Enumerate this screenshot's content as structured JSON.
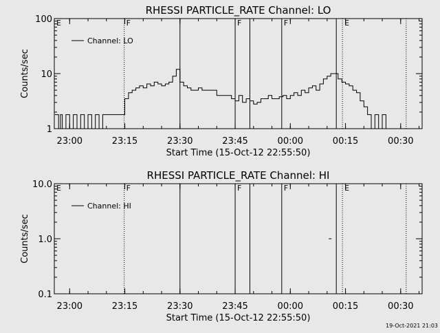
{
  "footer": {
    "timestamp": "19-Oct-2021 21:03"
  },
  "chart_data": [
    {
      "type": "line",
      "title": "RHESSI PARTICLE_RATE Channel: LO",
      "xlabel": "Start Time (15-Oct-12 22:55:50)",
      "ylabel": "Counts/sec",
      "yscale": "log",
      "ylim": [
        1,
        100
      ],
      "xlim": [
        "22:55:50",
        "00:35:50"
      ],
      "x_ticks": [
        "23:00",
        "23:15",
        "23:30",
        "23:45",
        "00:00",
        "00:15",
        "00:30"
      ],
      "y_ticks": [
        "1",
        "10",
        "100"
      ],
      "legend": {
        "position": "top-left",
        "entries": [
          "Channel: LO"
        ]
      },
      "annotations": [
        {
          "label": "E",
          "time": "22:55:50",
          "style": "none"
        },
        {
          "label": "F",
          "time": "23:14:50",
          "style": "dotted"
        },
        {
          "label": "",
          "time": "23:30:00",
          "style": "solid"
        },
        {
          "label": "F",
          "time": "23:45:00",
          "style": "solid"
        },
        {
          "label": "",
          "time": "23:49:00",
          "style": "solid"
        },
        {
          "label": "F",
          "time": "23:57:40",
          "style": "solid"
        },
        {
          "label": "",
          "time": "00:12:30",
          "style": "solid"
        },
        {
          "label": "E",
          "time": "00:14:10",
          "style": "dotted"
        },
        {
          "label": "",
          "time": "00:31:30",
          "style": "dotted"
        }
      ],
      "series": [
        {
          "name": "Channel: LO",
          "x": [
            "22:56:00",
            "22:57:00",
            "22:57:30",
            "22:58:00",
            "22:59:00",
            "23:00:00",
            "23:01:00",
            "23:02:00",
            "23:03:00",
            "23:04:00",
            "23:05:00",
            "23:06:00",
            "23:07:00",
            "23:08:00",
            "23:09:00",
            "23:10:00",
            "23:11:00",
            "23:12:00",
            "23:13:00",
            "23:14:00",
            "23:14:40",
            "23:15:00",
            "23:16:00",
            "23:17:00",
            "23:18:00",
            "23:19:00",
            "23:20:00",
            "23:21:00",
            "23:22:00",
            "23:23:00",
            "23:24:00",
            "23:25:00",
            "23:26:00",
            "23:27:00",
            "23:28:00",
            "23:29:00",
            "23:30:00",
            "23:31:00",
            "23:32:00",
            "23:33:00",
            "23:34:00",
            "23:35:00",
            "23:36:00",
            "23:37:00",
            "23:38:00",
            "23:39:00",
            "23:40:00",
            "23:41:00",
            "23:42:00",
            "23:43:00",
            "23:44:00",
            "23:45:00",
            "23:46:00",
            "23:47:00",
            "23:48:00",
            "23:49:00",
            "23:50:00",
            "23:51:00",
            "23:52:00",
            "23:53:00",
            "23:54:00",
            "23:55:00",
            "23:56:00",
            "23:57:00",
            "23:58:00",
            "23:59:00",
            "00:00:00",
            "00:01:00",
            "00:02:00",
            "00:03:00",
            "00:04:00",
            "00:05:00",
            "00:06:00",
            "00:07:00",
            "00:08:00",
            "00:09:00",
            "00:10:00",
            "00:11:00",
            "00:12:00",
            "00:13:00",
            "00:14:00",
            "00:15:00",
            "00:16:00",
            "00:17:00",
            "00:18:00",
            "00:19:00",
            "00:20:00",
            "00:21:00",
            "00:22:00",
            "00:23:00",
            "00:24:00",
            "00:25:00",
            "00:26:00",
            "00:27:00",
            "00:28:00",
            "00:29:00",
            "00:30:00",
            "00:31:00"
          ],
          "values": [
            1.8,
            1,
            1.8,
            1,
            1.8,
            1,
            1.8,
            1,
            1.8,
            1,
            1.8,
            1,
            1.8,
            1,
            1.8,
            1.8,
            1.8,
            1.8,
            1.8,
            1.8,
            1.8,
            3.5,
            4.5,
            5,
            5.5,
            6,
            5.5,
            6.5,
            6,
            7,
            6.5,
            6,
            6.5,
            7,
            9,
            12,
            7,
            6,
            5.5,
            5,
            5,
            5.5,
            5,
            5,
            5,
            5,
            4,
            4,
            4,
            4,
            3.5,
            3.2,
            4,
            3,
            3.5,
            3.2,
            2.8,
            3,
            3.5,
            3.5,
            4,
            3.5,
            3.5,
            3.8,
            4,
            3.5,
            4,
            4.5,
            4,
            5,
            4.5,
            5.5,
            6,
            5,
            6.5,
            8,
            9,
            10,
            10,
            8,
            7,
            6.5,
            6,
            5,
            4.5,
            3.2,
            2.5,
            1.8,
            1,
            1.8,
            1,
            1.8,
            1,
            1,
            1,
            1,
            1,
            1
          ]
        }
      ]
    },
    {
      "type": "line",
      "title": "RHESSI PARTICLE_RATE Channel: HI",
      "xlabel": "Start Time (15-Oct-12 22:55:50)",
      "ylabel": "Counts/sec",
      "yscale": "log",
      "ylim": [
        0.1,
        10
      ],
      "xlim": [
        "22:55:50",
        "00:35:50"
      ],
      "x_ticks": [
        "23:00",
        "23:15",
        "23:30",
        "23:45",
        "00:00",
        "00:15",
        "00:30"
      ],
      "y_ticks": [
        "0.1",
        "1.0",
        "10.0"
      ],
      "legend": {
        "position": "top-left",
        "entries": [
          "Channel: HI"
        ]
      },
      "annotations": [
        {
          "label": "E",
          "time": "22:55:50",
          "style": "none"
        },
        {
          "label": "F",
          "time": "23:14:50",
          "style": "dotted"
        },
        {
          "label": "",
          "time": "23:30:00",
          "style": "solid"
        },
        {
          "label": "F",
          "time": "23:45:00",
          "style": "solid"
        },
        {
          "label": "",
          "time": "23:49:00",
          "style": "solid"
        },
        {
          "label": "F",
          "time": "23:57:40",
          "style": "solid"
        },
        {
          "label": "",
          "time": "00:12:30",
          "style": "solid"
        },
        {
          "label": "E",
          "time": "00:14:10",
          "style": "dotted"
        },
        {
          "label": "",
          "time": "00:31:30",
          "style": "dotted"
        }
      ],
      "series": [
        {
          "name": "Channel: HI",
          "x": [
            "00:10:50"
          ],
          "values": [
            1.0
          ]
        }
      ]
    }
  ]
}
